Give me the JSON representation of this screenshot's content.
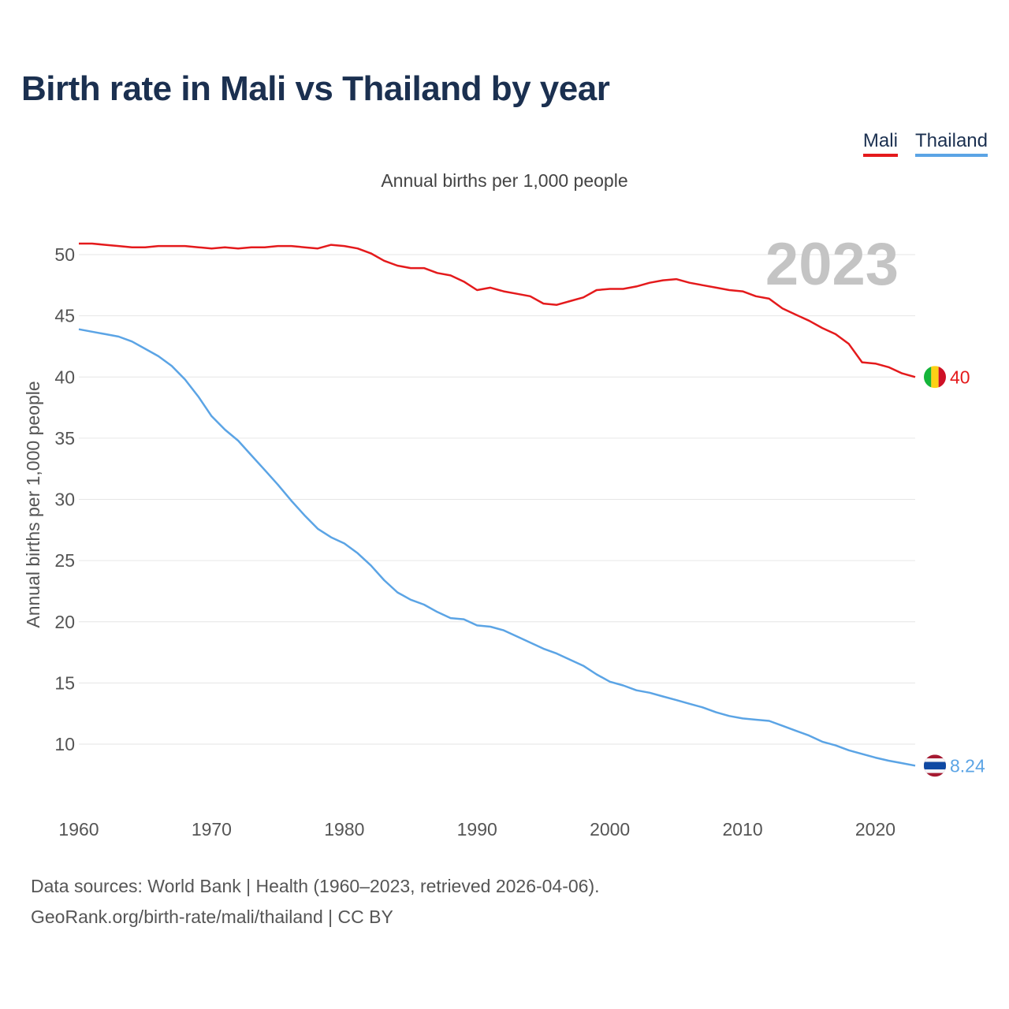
{
  "title": "Birth rate in Mali vs Thailand by year",
  "subtitle": "Annual births per 1,000 people",
  "legend": [
    {
      "name": "Mali",
      "color": "#e41a1c"
    },
    {
      "name": "Thailand",
      "color": "#5ba4e5"
    }
  ],
  "footer": {
    "line1": "Data sources: World Bank | Health (1960–2023, retrieved 2026-04-06).",
    "line2": "GeoRank.org/birth-rate/mali/thailand | CC BY"
  },
  "chart_data": {
    "type": "line",
    "title": "Birth rate in Mali vs Thailand by year",
    "ylabel": "Annual births per 1,000 people",
    "xlabel": "",
    "xlim": [
      1960,
      2023
    ],
    "ylim": [
      5.5,
      52.5
    ],
    "xticks": [
      1960,
      1970,
      1980,
      1990,
      2000,
      2010,
      2020
    ],
    "yticks": [
      10,
      15,
      20,
      25,
      30,
      35,
      40,
      45,
      50
    ],
    "current_year": "2023",
    "x": [
      1960,
      1961,
      1962,
      1963,
      1964,
      1965,
      1966,
      1967,
      1968,
      1969,
      1970,
      1971,
      1972,
      1973,
      1974,
      1975,
      1976,
      1977,
      1978,
      1979,
      1980,
      1981,
      1982,
      1983,
      1984,
      1985,
      1986,
      1987,
      1988,
      1989,
      1990,
      1991,
      1992,
      1993,
      1994,
      1995,
      1996,
      1997,
      1998,
      1999,
      2000,
      2001,
      2002,
      2003,
      2004,
      2005,
      2006,
      2007,
      2008,
      2009,
      2010,
      2011,
      2012,
      2013,
      2014,
      2015,
      2016,
      2017,
      2018,
      2019,
      2020,
      2021,
      2022,
      2023
    ],
    "series": [
      {
        "name": "Mali",
        "color": "#e41a1c",
        "end_label": "40",
        "values": [
          50.9,
          50.9,
          50.8,
          50.7,
          50.6,
          50.6,
          50.7,
          50.7,
          50.7,
          50.6,
          50.5,
          50.6,
          50.5,
          50.6,
          50.6,
          50.7,
          50.7,
          50.6,
          50.5,
          50.8,
          50.7,
          50.5,
          50.1,
          49.5,
          49.1,
          48.9,
          48.9,
          48.5,
          48.3,
          47.8,
          47.1,
          47.3,
          47.0,
          46.8,
          46.6,
          46.0,
          45.9,
          46.2,
          46.5,
          47.1,
          47.2,
          47.2,
          47.4,
          47.7,
          47.9,
          48.0,
          47.7,
          47.5,
          47.3,
          47.1,
          47.0,
          46.6,
          46.4,
          45.6,
          45.1,
          44.6,
          44.0,
          43.5,
          42.7,
          41.2,
          41.1,
          40.8,
          40.3,
          40.0
        ]
      },
      {
        "name": "Thailand",
        "color": "#5ba4e5",
        "end_label": "8.24",
        "values": [
          43.9,
          43.7,
          43.5,
          43.3,
          42.9,
          42.3,
          41.7,
          40.9,
          39.8,
          38.4,
          36.8,
          35.7,
          34.8,
          33.6,
          32.4,
          31.2,
          29.9,
          28.7,
          27.6,
          26.9,
          26.4,
          25.6,
          24.6,
          23.4,
          22.4,
          21.8,
          21.4,
          20.8,
          20.3,
          20.2,
          19.7,
          19.6,
          19.3,
          18.8,
          18.3,
          17.8,
          17.4,
          16.9,
          16.4,
          15.7,
          15.1,
          14.8,
          14.4,
          14.2,
          13.9,
          13.6,
          13.3,
          13.0,
          12.6,
          12.3,
          12.1,
          12.0,
          11.9,
          11.5,
          11.1,
          10.7,
          10.2,
          9.9,
          9.5,
          9.2,
          8.9,
          8.65,
          8.45,
          8.24
        ]
      }
    ]
  }
}
